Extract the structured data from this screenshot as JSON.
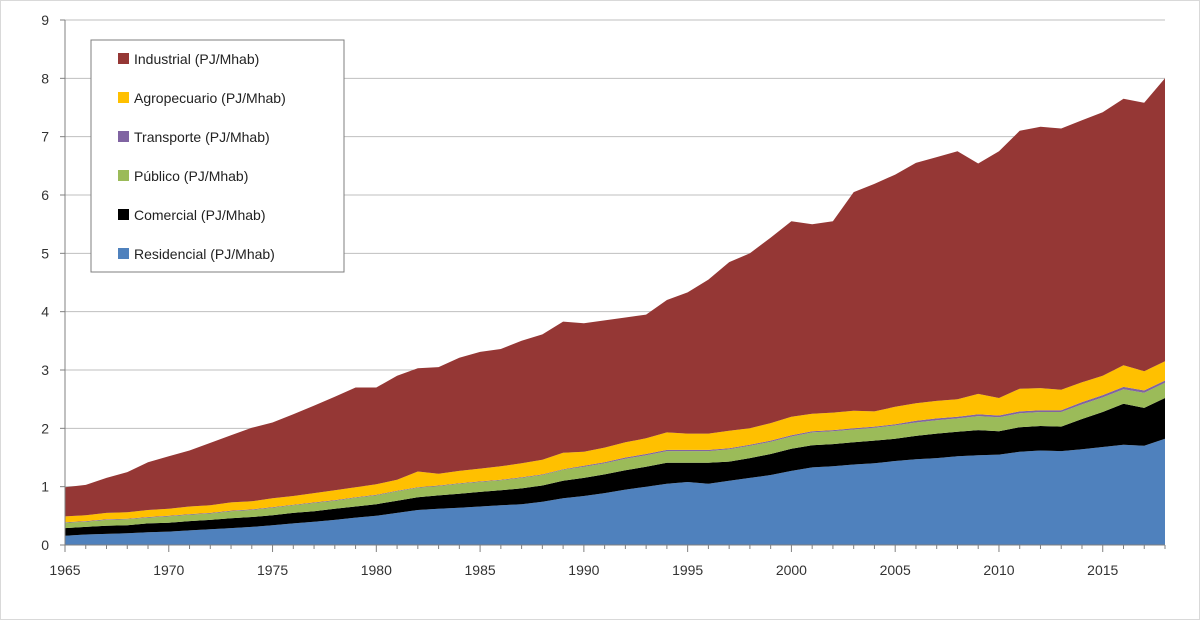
{
  "chart_data": {
    "type": "area",
    "stacked": true,
    "title": "",
    "xlabel": "",
    "ylabel": "",
    "xlim": [
      1965,
      2018
    ],
    "ylim": [
      0,
      9
    ],
    "x_ticks": [
      1965,
      1970,
      1975,
      1980,
      1985,
      1990,
      1995,
      2000,
      2005,
      2010,
      2015
    ],
    "y_ticks": [
      0,
      1,
      2,
      3,
      4,
      5,
      6,
      7,
      8,
      9
    ],
    "grid": "horizontal",
    "legend_position": "top-left",
    "x": [
      1965,
      1966,
      1967,
      1968,
      1969,
      1970,
      1971,
      1972,
      1973,
      1974,
      1975,
      1976,
      1977,
      1978,
      1979,
      1980,
      1981,
      1982,
      1983,
      1984,
      1985,
      1986,
      1987,
      1988,
      1989,
      1990,
      1991,
      1992,
      1993,
      1994,
      1995,
      1996,
      1997,
      1998,
      1999,
      2000,
      2001,
      2002,
      2003,
      2004,
      2005,
      2006,
      2007,
      2008,
      2009,
      2010,
      2011,
      2012,
      2013,
      2014,
      2015,
      2016,
      2017,
      2018
    ],
    "series": [
      {
        "name": "Residencial (PJ/Mhab)",
        "color": "#4f81bd",
        "values": [
          0.16,
          0.18,
          0.19,
          0.2,
          0.22,
          0.23,
          0.25,
          0.27,
          0.29,
          0.31,
          0.34,
          0.37,
          0.4,
          0.43,
          0.47,
          0.5,
          0.55,
          0.6,
          0.62,
          0.64,
          0.66,
          0.68,
          0.7,
          0.74,
          0.8,
          0.84,
          0.89,
          0.95,
          1.0,
          1.05,
          1.08,
          1.05,
          1.1,
          1.15,
          1.2,
          1.27,
          1.33,
          1.35,
          1.38,
          1.4,
          1.44,
          1.47,
          1.49,
          1.52,
          1.54,
          1.55,
          1.6,
          1.62,
          1.61,
          1.64,
          1.68,
          1.72,
          1.7,
          1.82
        ]
      },
      {
        "name": "Comercial (PJ/Mhab)",
        "color": "#000000",
        "values": [
          0.13,
          0.13,
          0.14,
          0.14,
          0.15,
          0.15,
          0.16,
          0.16,
          0.17,
          0.17,
          0.17,
          0.18,
          0.18,
          0.19,
          0.19,
          0.2,
          0.21,
          0.22,
          0.23,
          0.24,
          0.25,
          0.26,
          0.27,
          0.28,
          0.3,
          0.31,
          0.32,
          0.33,
          0.34,
          0.36,
          0.33,
          0.36,
          0.33,
          0.34,
          0.36,
          0.38,
          0.38,
          0.38,
          0.38,
          0.39,
          0.38,
          0.4,
          0.42,
          0.42,
          0.43,
          0.4,
          0.42,
          0.42,
          0.42,
          0.52,
          0.6,
          0.7,
          0.65,
          0.7
        ]
      },
      {
        "name": "Público (PJ/Mhab)",
        "color": "#9bbb59",
        "values": [
          0.09,
          0.09,
          0.1,
          0.1,
          0.1,
          0.11,
          0.11,
          0.11,
          0.12,
          0.12,
          0.13,
          0.13,
          0.14,
          0.14,
          0.15,
          0.15,
          0.16,
          0.16,
          0.16,
          0.17,
          0.17,
          0.17,
          0.18,
          0.18,
          0.19,
          0.19,
          0.19,
          0.2,
          0.2,
          0.2,
          0.2,
          0.2,
          0.21,
          0.21,
          0.21,
          0.21,
          0.22,
          0.22,
          0.22,
          0.22,
          0.23,
          0.23,
          0.23,
          0.23,
          0.24,
          0.24,
          0.24,
          0.24,
          0.25,
          0.25,
          0.25,
          0.25,
          0.26,
          0.26
        ]
      },
      {
        "name": "Transporte (PJ/Mhab)",
        "color": "#8064a2",
        "values": [
          0.01,
          0.01,
          0.01,
          0.01,
          0.01,
          0.01,
          0.01,
          0.01,
          0.01,
          0.01,
          0.01,
          0.01,
          0.01,
          0.01,
          0.01,
          0.01,
          0.01,
          0.01,
          0.01,
          0.01,
          0.01,
          0.01,
          0.01,
          0.01,
          0.01,
          0.02,
          0.02,
          0.02,
          0.02,
          0.02,
          0.02,
          0.02,
          0.02,
          0.02,
          0.02,
          0.02,
          0.02,
          0.02,
          0.02,
          0.02,
          0.02,
          0.03,
          0.03,
          0.03,
          0.03,
          0.03,
          0.03,
          0.03,
          0.03,
          0.04,
          0.04,
          0.04,
          0.04,
          0.04
        ]
      },
      {
        "name": "Agropecuario (PJ/Mhab)",
        "color": "#ffc000",
        "values": [
          0.1,
          0.1,
          0.11,
          0.11,
          0.12,
          0.12,
          0.13,
          0.13,
          0.14,
          0.14,
          0.15,
          0.15,
          0.16,
          0.17,
          0.17,
          0.18,
          0.19,
          0.27,
          0.2,
          0.21,
          0.22,
          0.23,
          0.24,
          0.25,
          0.28,
          0.24,
          0.25,
          0.26,
          0.27,
          0.3,
          0.28,
          0.28,
          0.3,
          0.28,
          0.3,
          0.32,
          0.3,
          0.3,
          0.3,
          0.26,
          0.3,
          0.3,
          0.3,
          0.3,
          0.35,
          0.3,
          0.39,
          0.38,
          0.35,
          0.34,
          0.33,
          0.37,
          0.33,
          0.33
        ]
      },
      {
        "name": "Industrial (PJ/Mhab)",
        "color": "#953735",
        "values": [
          0.5,
          0.52,
          0.6,
          0.69,
          0.82,
          0.9,
          0.96,
          1.07,
          1.15,
          1.26,
          1.3,
          1.4,
          1.5,
          1.6,
          1.71,
          1.66,
          1.78,
          1.77,
          1.83,
          1.94,
          2.0,
          2.01,
          2.1,
          2.15,
          2.25,
          2.2,
          2.18,
          2.14,
          2.12,
          2.27,
          2.42,
          2.64,
          2.89,
          3.0,
          3.18,
          3.35,
          3.25,
          3.28,
          3.75,
          3.9,
          3.98,
          4.12,
          4.18,
          4.25,
          3.95,
          4.23,
          4.42,
          4.48,
          4.48,
          4.49,
          4.52,
          4.57,
          4.6,
          4.85
        ]
      }
    ]
  }
}
